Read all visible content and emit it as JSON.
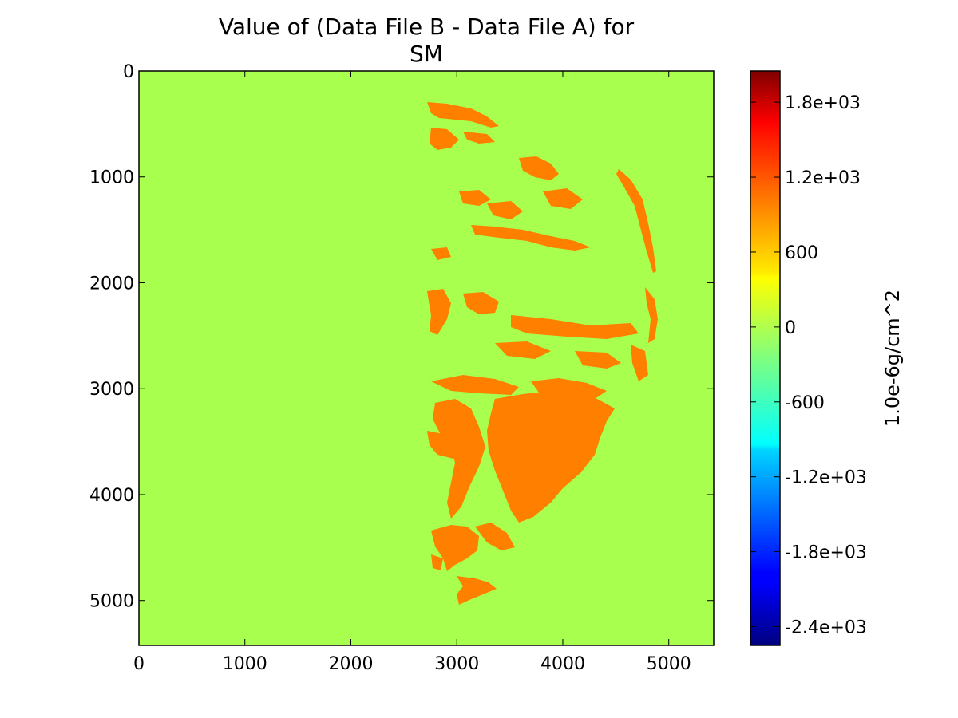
{
  "chart_data": {
    "type": "heatmap",
    "title": [
      "Value of (Data File B - Data File A) for",
      "SM"
    ],
    "x_ticks": [
      0,
      1000,
      2000,
      3000,
      4000,
      5000
    ],
    "y_ticks": [
      0,
      1000,
      2000,
      3000,
      4000,
      5000
    ],
    "x_range": [
      0,
      5424
    ],
    "y_range": [
      0,
      5424
    ],
    "y_inverted": true,
    "background_value": 0,
    "dominant_nonzero_value": 1050,
    "colorbar": {
      "label": "1.0e-6g/cm^2",
      "colormap": "jet",
      "range": [
        -2550,
        2050
      ],
      "ticks": [
        1800,
        1200,
        600,
        0,
        -600,
        -1200,
        -1800,
        -2400
      ],
      "tick_labels": [
        "1.8e+03",
        "1.2e+03",
        "600",
        "0",
        "-600",
        "-1.2e+03",
        "-1.8e+03",
        "-2.4e+03"
      ]
    },
    "colors": {
      "background": "#a9ff4e",
      "difference_regions": "#ff7f00",
      "frame": "#000000"
    }
  }
}
